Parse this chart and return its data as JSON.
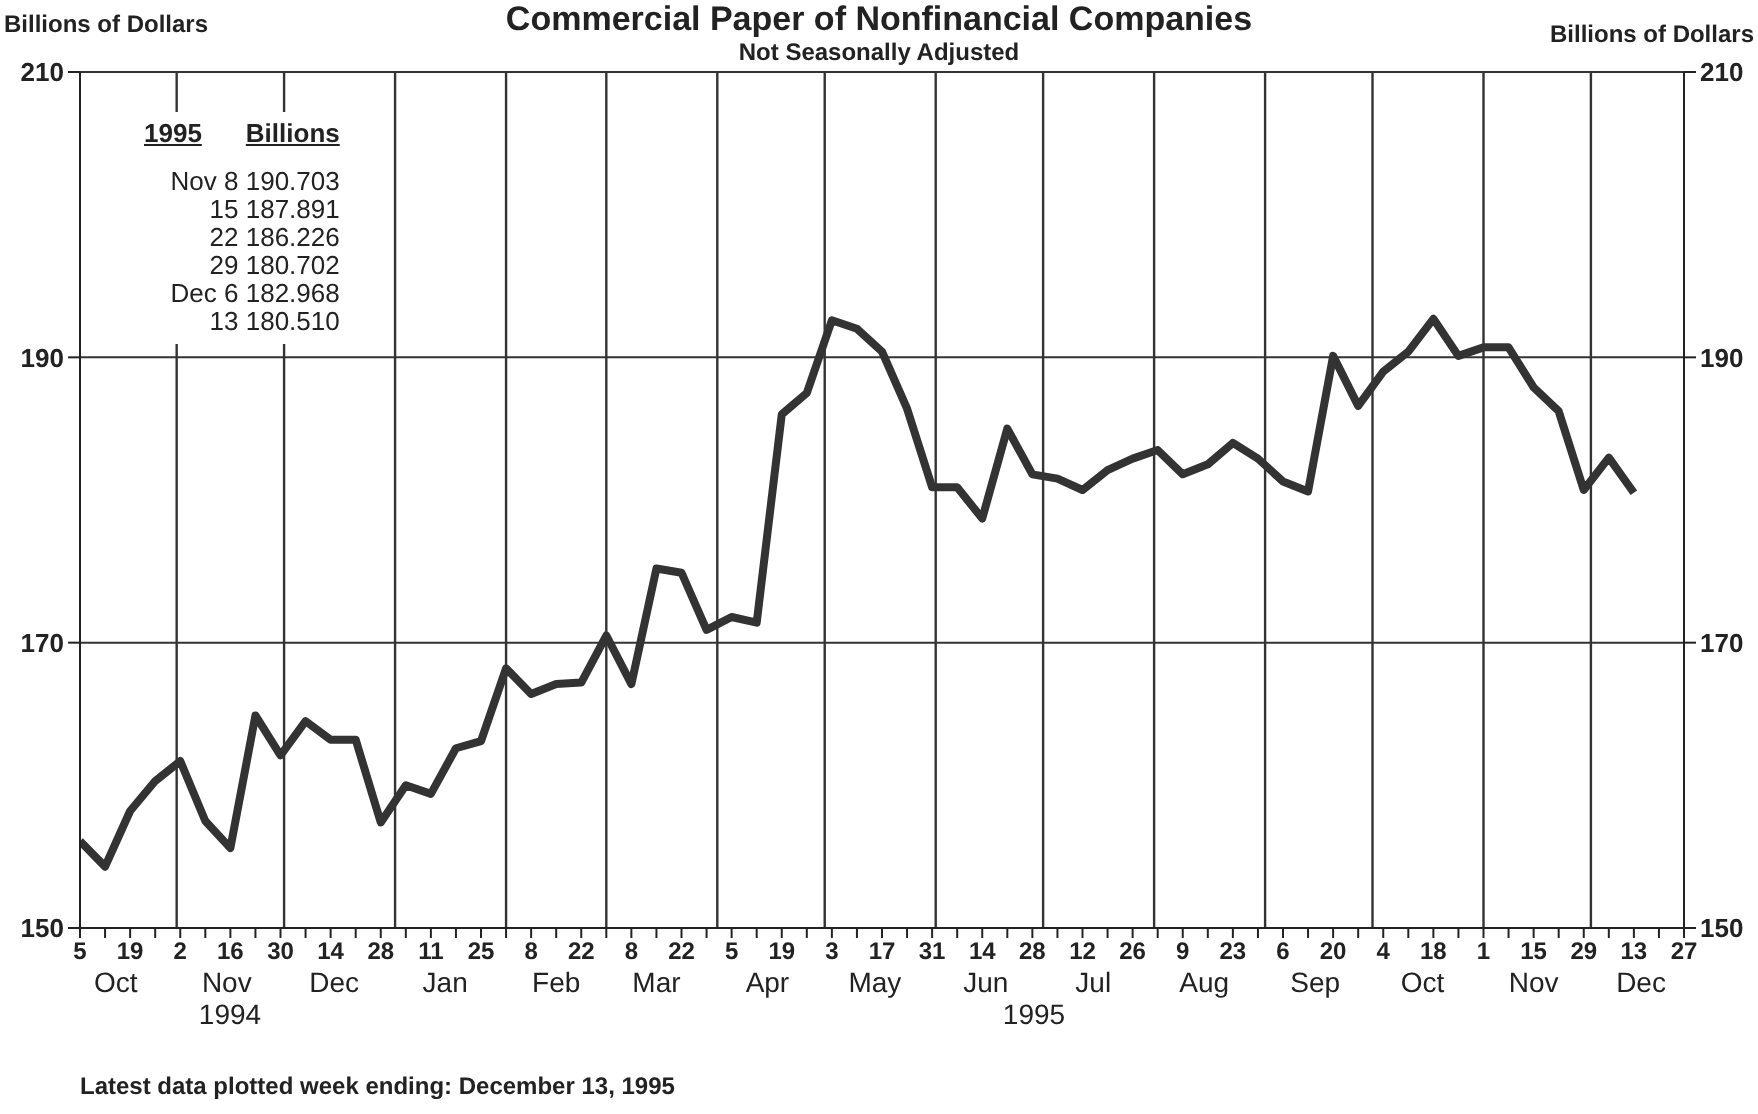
{
  "chart_data": {
    "type": "line",
    "title": "Commercial Paper of Nonfinancial Companies",
    "subtitle": "Not Seasonally Adjusted",
    "ylabel": "Billions of Dollars",
    "y2label": "Billions of Dollars",
    "x": [
      "1994-10-05",
      "1994-10-12",
      "1994-10-19",
      "1994-10-26",
      "1994-11-02",
      "1994-11-09",
      "1994-11-16",
      "1994-11-23",
      "1994-11-30",
      "1994-12-07",
      "1994-12-14",
      "1994-12-21",
      "1994-12-28",
      "1995-01-04",
      "1995-01-11",
      "1995-01-18",
      "1995-01-25",
      "1995-02-01",
      "1995-02-08",
      "1995-02-15",
      "1995-02-22",
      "1995-03-01",
      "1995-03-08",
      "1995-03-15",
      "1995-03-22",
      "1995-03-29",
      "1995-04-05",
      "1995-04-12",
      "1995-04-19",
      "1995-04-26",
      "1995-05-03",
      "1995-05-10",
      "1995-05-17",
      "1995-05-24",
      "1995-05-31",
      "1995-06-07",
      "1995-06-14",
      "1995-06-21",
      "1995-06-28",
      "1995-07-05",
      "1995-07-12",
      "1995-07-19",
      "1995-07-26",
      "1995-08-02",
      "1995-08-09",
      "1995-08-16",
      "1995-08-23",
      "1995-08-30",
      "1995-09-06",
      "1995-09-13",
      "1995-09-20",
      "1995-09-27",
      "1995-10-04",
      "1995-10-11",
      "1995-10-18",
      "1995-10-25",
      "1995-11-01",
      "1995-11-08",
      "1995-11-15",
      "1995-11-22",
      "1995-11-29",
      "1995-12-06",
      "1995-12-13"
    ],
    "values": [
      156.1,
      154.3,
      158.2,
      160.3,
      161.7,
      157.5,
      155.6,
      164.9,
      162.1,
      164.5,
      163.2,
      163.2,
      157.4,
      160.0,
      159.4,
      162.6,
      163.1,
      168.2,
      166.4,
      167.1,
      167.2,
      170.5,
      167.1,
      175.2,
      174.9,
      170.9,
      171.8,
      171.4,
      186.0,
      187.5,
      192.6,
      192.0,
      190.4,
      186.4,
      180.9,
      180.9,
      178.7,
      185.0,
      181.8,
      181.5,
      180.7,
      182.1,
      182.9,
      183.5,
      181.8,
      182.5,
      184.0,
      182.9,
      181.3,
      180.6,
      190.1,
      186.6,
      189.0,
      190.4,
      192.7,
      190.1,
      190.7,
      190.703,
      187.891,
      186.226,
      180.702,
      182.968,
      180.51
    ],
    "color": "#333333",
    "line_style": "solid",
    "marker": "none",
    "grid": "y",
    "xlim": [
      "1994-10-05",
      "1995-12-27"
    ],
    "xticks": [
      {
        "value": "1994-10-05",
        "label": "5"
      },
      {
        "value": "1994-10-12",
        "label": null
      },
      {
        "value": "1994-10-19",
        "label": "19"
      },
      {
        "value": "1994-10-26",
        "label": null
      },
      {
        "value": "1994-11-02",
        "label": "2"
      },
      {
        "value": "1994-11-09",
        "label": null
      },
      {
        "value": "1994-11-16",
        "label": "16"
      },
      {
        "value": "1994-11-23",
        "label": null
      },
      {
        "value": "1994-11-30",
        "label": "30"
      },
      {
        "value": "1994-12-07",
        "label": null
      },
      {
        "value": "1994-12-14",
        "label": "14"
      },
      {
        "value": "1994-12-21",
        "label": null
      },
      {
        "value": "1994-12-28",
        "label": "28"
      },
      {
        "value": "1995-01-04",
        "label": null
      },
      {
        "value": "1995-01-11",
        "label": "11"
      },
      {
        "value": "1995-01-18",
        "label": null
      },
      {
        "value": "1995-01-25",
        "label": "25"
      },
      {
        "value": "1995-02-01",
        "label": null
      },
      {
        "value": "1995-02-08",
        "label": "8"
      },
      {
        "value": "1995-02-15",
        "label": null
      },
      {
        "value": "1995-02-22",
        "label": "22"
      },
      {
        "value": "1995-03-01",
        "label": null
      },
      {
        "value": "1995-03-08",
        "label": "8"
      },
      {
        "value": "1995-03-15",
        "label": null
      },
      {
        "value": "1995-03-22",
        "label": "22"
      },
      {
        "value": "1995-03-29",
        "label": null
      },
      {
        "value": "1995-04-05",
        "label": "5"
      },
      {
        "value": "1995-04-12",
        "label": null
      },
      {
        "value": "1995-04-19",
        "label": "19"
      },
      {
        "value": "1995-04-26",
        "label": null
      },
      {
        "value": "1995-05-03",
        "label": "3"
      },
      {
        "value": "1995-05-10",
        "label": null
      },
      {
        "value": "1995-05-17",
        "label": "17"
      },
      {
        "value": "1995-05-24",
        "label": null
      },
      {
        "value": "1995-05-31",
        "label": "31"
      },
      {
        "value": "1995-06-07",
        "label": null
      },
      {
        "value": "1995-06-14",
        "label": "14"
      },
      {
        "value": "1995-06-21",
        "label": null
      },
      {
        "value": "1995-06-28",
        "label": "28"
      },
      {
        "value": "1995-07-05",
        "label": null
      },
      {
        "value": "1995-07-12",
        "label": "12"
      },
      {
        "value": "1995-07-19",
        "label": null
      },
      {
        "value": "1995-07-26",
        "label": "26"
      },
      {
        "value": "1995-08-02",
        "label": null
      },
      {
        "value": "1995-08-09",
        "label": "9"
      },
      {
        "value": "1995-08-16",
        "label": null
      },
      {
        "value": "1995-08-23",
        "label": "23"
      },
      {
        "value": "1995-08-30",
        "label": null
      },
      {
        "value": "1995-09-06",
        "label": "6"
      },
      {
        "value": "1995-09-13",
        "label": null
      },
      {
        "value": "1995-09-20",
        "label": "20"
      },
      {
        "value": "1995-09-27",
        "label": null
      },
      {
        "value": "1995-10-04",
        "label": "4"
      },
      {
        "value": "1995-10-11",
        "label": null
      },
      {
        "value": "1995-10-18",
        "label": "18"
      },
      {
        "value": "1995-10-25",
        "label": null
      },
      {
        "value": "1995-11-01",
        "label": "1"
      },
      {
        "value": "1995-11-08",
        "label": null
      },
      {
        "value": "1995-11-15",
        "label": "15"
      },
      {
        "value": "1995-11-22",
        "label": null
      },
      {
        "value": "1995-11-29",
        "label": "29"
      },
      {
        "value": "1995-12-06",
        "label": null
      },
      {
        "value": "1995-12-13",
        "label": "13"
      },
      {
        "value": "1995-12-20",
        "label": null
      },
      {
        "value": "1995-12-27",
        "label": "27"
      }
    ],
    "x2lim": [
      "1994-10-05",
      "1995-12-27"
    ],
    "x2ticks": [
      {
        "value": "1994-10-15",
        "label": "Oct"
      },
      {
        "value": "1994-11-15",
        "label": "Nov"
      },
      {
        "value": "1994-12-15",
        "label": "Dec"
      },
      {
        "value": "1995-01-15",
        "label": "Jan"
      },
      {
        "value": "1995-02-15",
        "label": "Feb"
      },
      {
        "value": "1995-03-15",
        "label": "Mar"
      },
      {
        "value": "1995-04-15",
        "label": "Apr"
      },
      {
        "value": "1995-05-15",
        "label": "May"
      },
      {
        "value": "1995-06-15",
        "label": "Jun"
      },
      {
        "value": "1995-07-15",
        "label": "Jul"
      },
      {
        "value": "1995-08-15",
        "label": "Aug"
      },
      {
        "value": "1995-09-15",
        "label": "Sep"
      },
      {
        "value": "1995-10-15",
        "label": "Oct"
      },
      {
        "value": "1995-11-15",
        "label": "Nov"
      },
      {
        "value": "1995-12-15",
        "label": "Dec"
      }
    ],
    "ylim": [
      150,
      210
    ],
    "yticks": [
      150,
      170,
      190,
      210
    ],
    "y2lim": [
      150,
      210
    ],
    "y2ticks": [
      150,
      170,
      190,
      210
    ],
    "ref_lines": [
      {
        "axis": "x",
        "value": "1994-11-01"
      },
      {
        "axis": "x",
        "value": "1994-12-01"
      },
      {
        "axis": "x",
        "value": "1995-01-01"
      },
      {
        "axis": "x",
        "value": "1995-02-01"
      },
      {
        "axis": "x",
        "value": "1995-03-01"
      },
      {
        "axis": "x",
        "value": "1995-04-01"
      },
      {
        "axis": "x",
        "value": "1995-05-01"
      },
      {
        "axis": "x",
        "value": "1995-06-01"
      },
      {
        "axis": "x",
        "value": "1995-07-01"
      },
      {
        "axis": "x",
        "value": "1995-08-01"
      },
      {
        "axis": "x",
        "value": "1995-09-01"
      },
      {
        "axis": "x",
        "value": "1995-10-01"
      },
      {
        "axis": "x",
        "value": "1995-11-01"
      },
      {
        "axis": "x",
        "value": "1995-12-01"
      }
    ],
    "annotations": [
      "1995",
      "Billions",
      "Nov 8 190.703",
      "15 187.891",
      "22 186.226",
      "29 180.702",
      "Dec 6 182.968",
      "13 180.510",
      "Latest data plotted week ending: December 13, 1995",
      "1994",
      "1995"
    ]
  }
}
